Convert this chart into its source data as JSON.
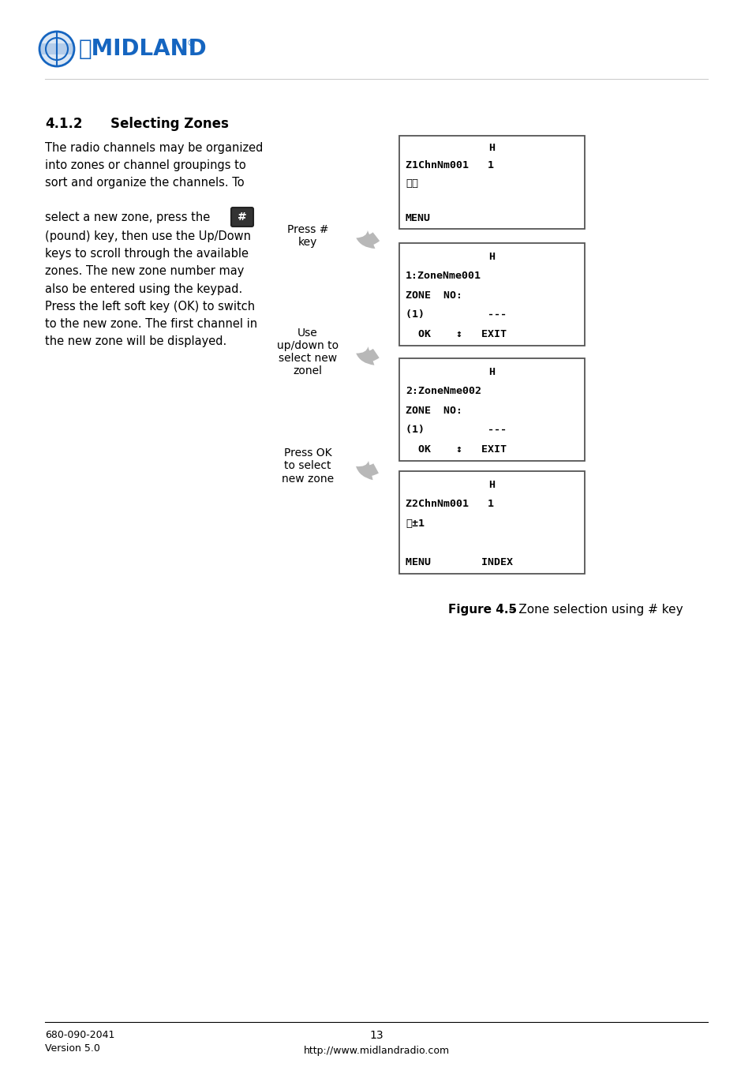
{
  "bg_color": "#ffffff",
  "section_num": "4.1.2",
  "section_title": "Selecting Zones",
  "body_para1": "The radio channels may be organized\ninto zones or channel groupings to\nsort and organize the channels. To",
  "body_para2": "(pound) key, then use the Up/Down\nkeys to scroll through the available\nzones. The new zone number may\nalso be entered using the keypad.\nPress the left soft key (OK) to switch\nto the new zone. The first channel in\nthe new zone will be displayed.",
  "select_text": "select a new zone, press the",
  "screens": [
    {
      "title": "H",
      "lines": [
        "Z1ChnNm001   1",
        "マ〜",
        "",
        "MENU"
      ]
    },
    {
      "title": "H",
      "lines": [
        "1:ZoneNme001",
        "ZONE  NO:",
        "(1)          ---",
        "  OK    ↕   EXIT"
      ]
    },
    {
      "title": "H",
      "lines": [
        "2:ZoneNme002",
        "ZONE  NO:",
        "(1)          ---",
        "  OK    ↕   EXIT"
      ]
    },
    {
      "title": "H",
      "lines": [
        "Z2ChnNm001   1",
        "マ±1",
        "",
        "MENU        INDEX"
      ]
    }
  ],
  "arrow_labels": [
    "Press #\nkey",
    "Use\nup/down to\nselect new\nzonel",
    "Press OK\nto select\nnew zone"
  ],
  "caption_bold": "Figure 4.5",
  "caption_rest": " – Zone selection using # key",
  "footer_left1": "680-090-2041",
  "footer_left2": "Version 5.0",
  "footer_center": "13",
  "footer_url": "http://www.midlandradio.com",
  "midland_text": "MIDLAND",
  "midland_color": "#1565c0"
}
